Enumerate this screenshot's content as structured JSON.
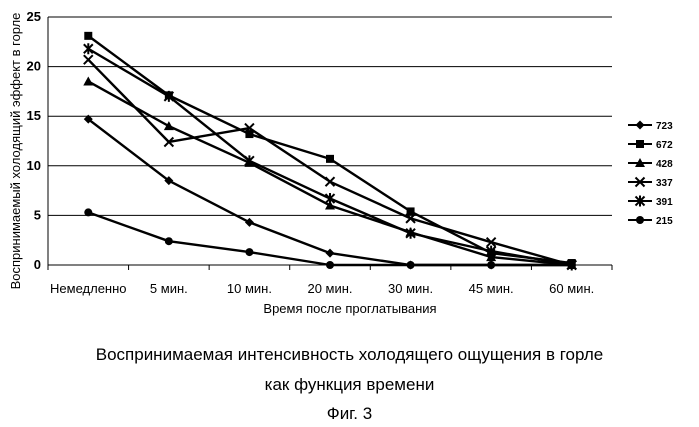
{
  "chart_data": {
    "type": "line",
    "categories": [
      "Немедленно",
      "5 мин.",
      "10 мин.",
      "20 мин.",
      "30 мин.",
      "45 мин.",
      "60 мин."
    ],
    "series": [
      {
        "name": "723",
        "marker": "diamond",
        "values": [
          14.7,
          8.5,
          4.3,
          1.2,
          0,
          0,
          0
        ]
      },
      {
        "name": "672",
        "marker": "square",
        "values": [
          23.1,
          17.1,
          13.2,
          10.7,
          5.4,
          1.2,
          0.2
        ]
      },
      {
        "name": "428",
        "marker": "triangle",
        "values": [
          18.5,
          14.0,
          10.3,
          6.0,
          3.3,
          0.8,
          0
        ]
      },
      {
        "name": "337",
        "marker": "x",
        "values": [
          20.7,
          12.4,
          13.8,
          8.4,
          4.7,
          2.3,
          0
        ]
      },
      {
        "name": "391",
        "marker": "star",
        "values": [
          21.8,
          17.0,
          10.5,
          6.7,
          3.2,
          1.4,
          0
        ]
      },
      {
        "name": "215",
        "marker": "circle",
        "values": [
          5.3,
          2.4,
          1.3,
          0,
          0,
          0,
          0
        ]
      }
    ],
    "ylabel": "Воспринимаемый холодящий эффект в горле",
    "xlabel": "Время после проглатывания",
    "ylim": [
      0,
      25
    ],
    "yticks": [
      0,
      5,
      10,
      15,
      20,
      25
    ],
    "grid": true,
    "legend_position": "right"
  },
  "caption": {
    "line1": "Воспринимаемая интенсивность холодящего ощущения в горле",
    "line2": "как функция времени",
    "figure_label": "Фиг. 3"
  }
}
